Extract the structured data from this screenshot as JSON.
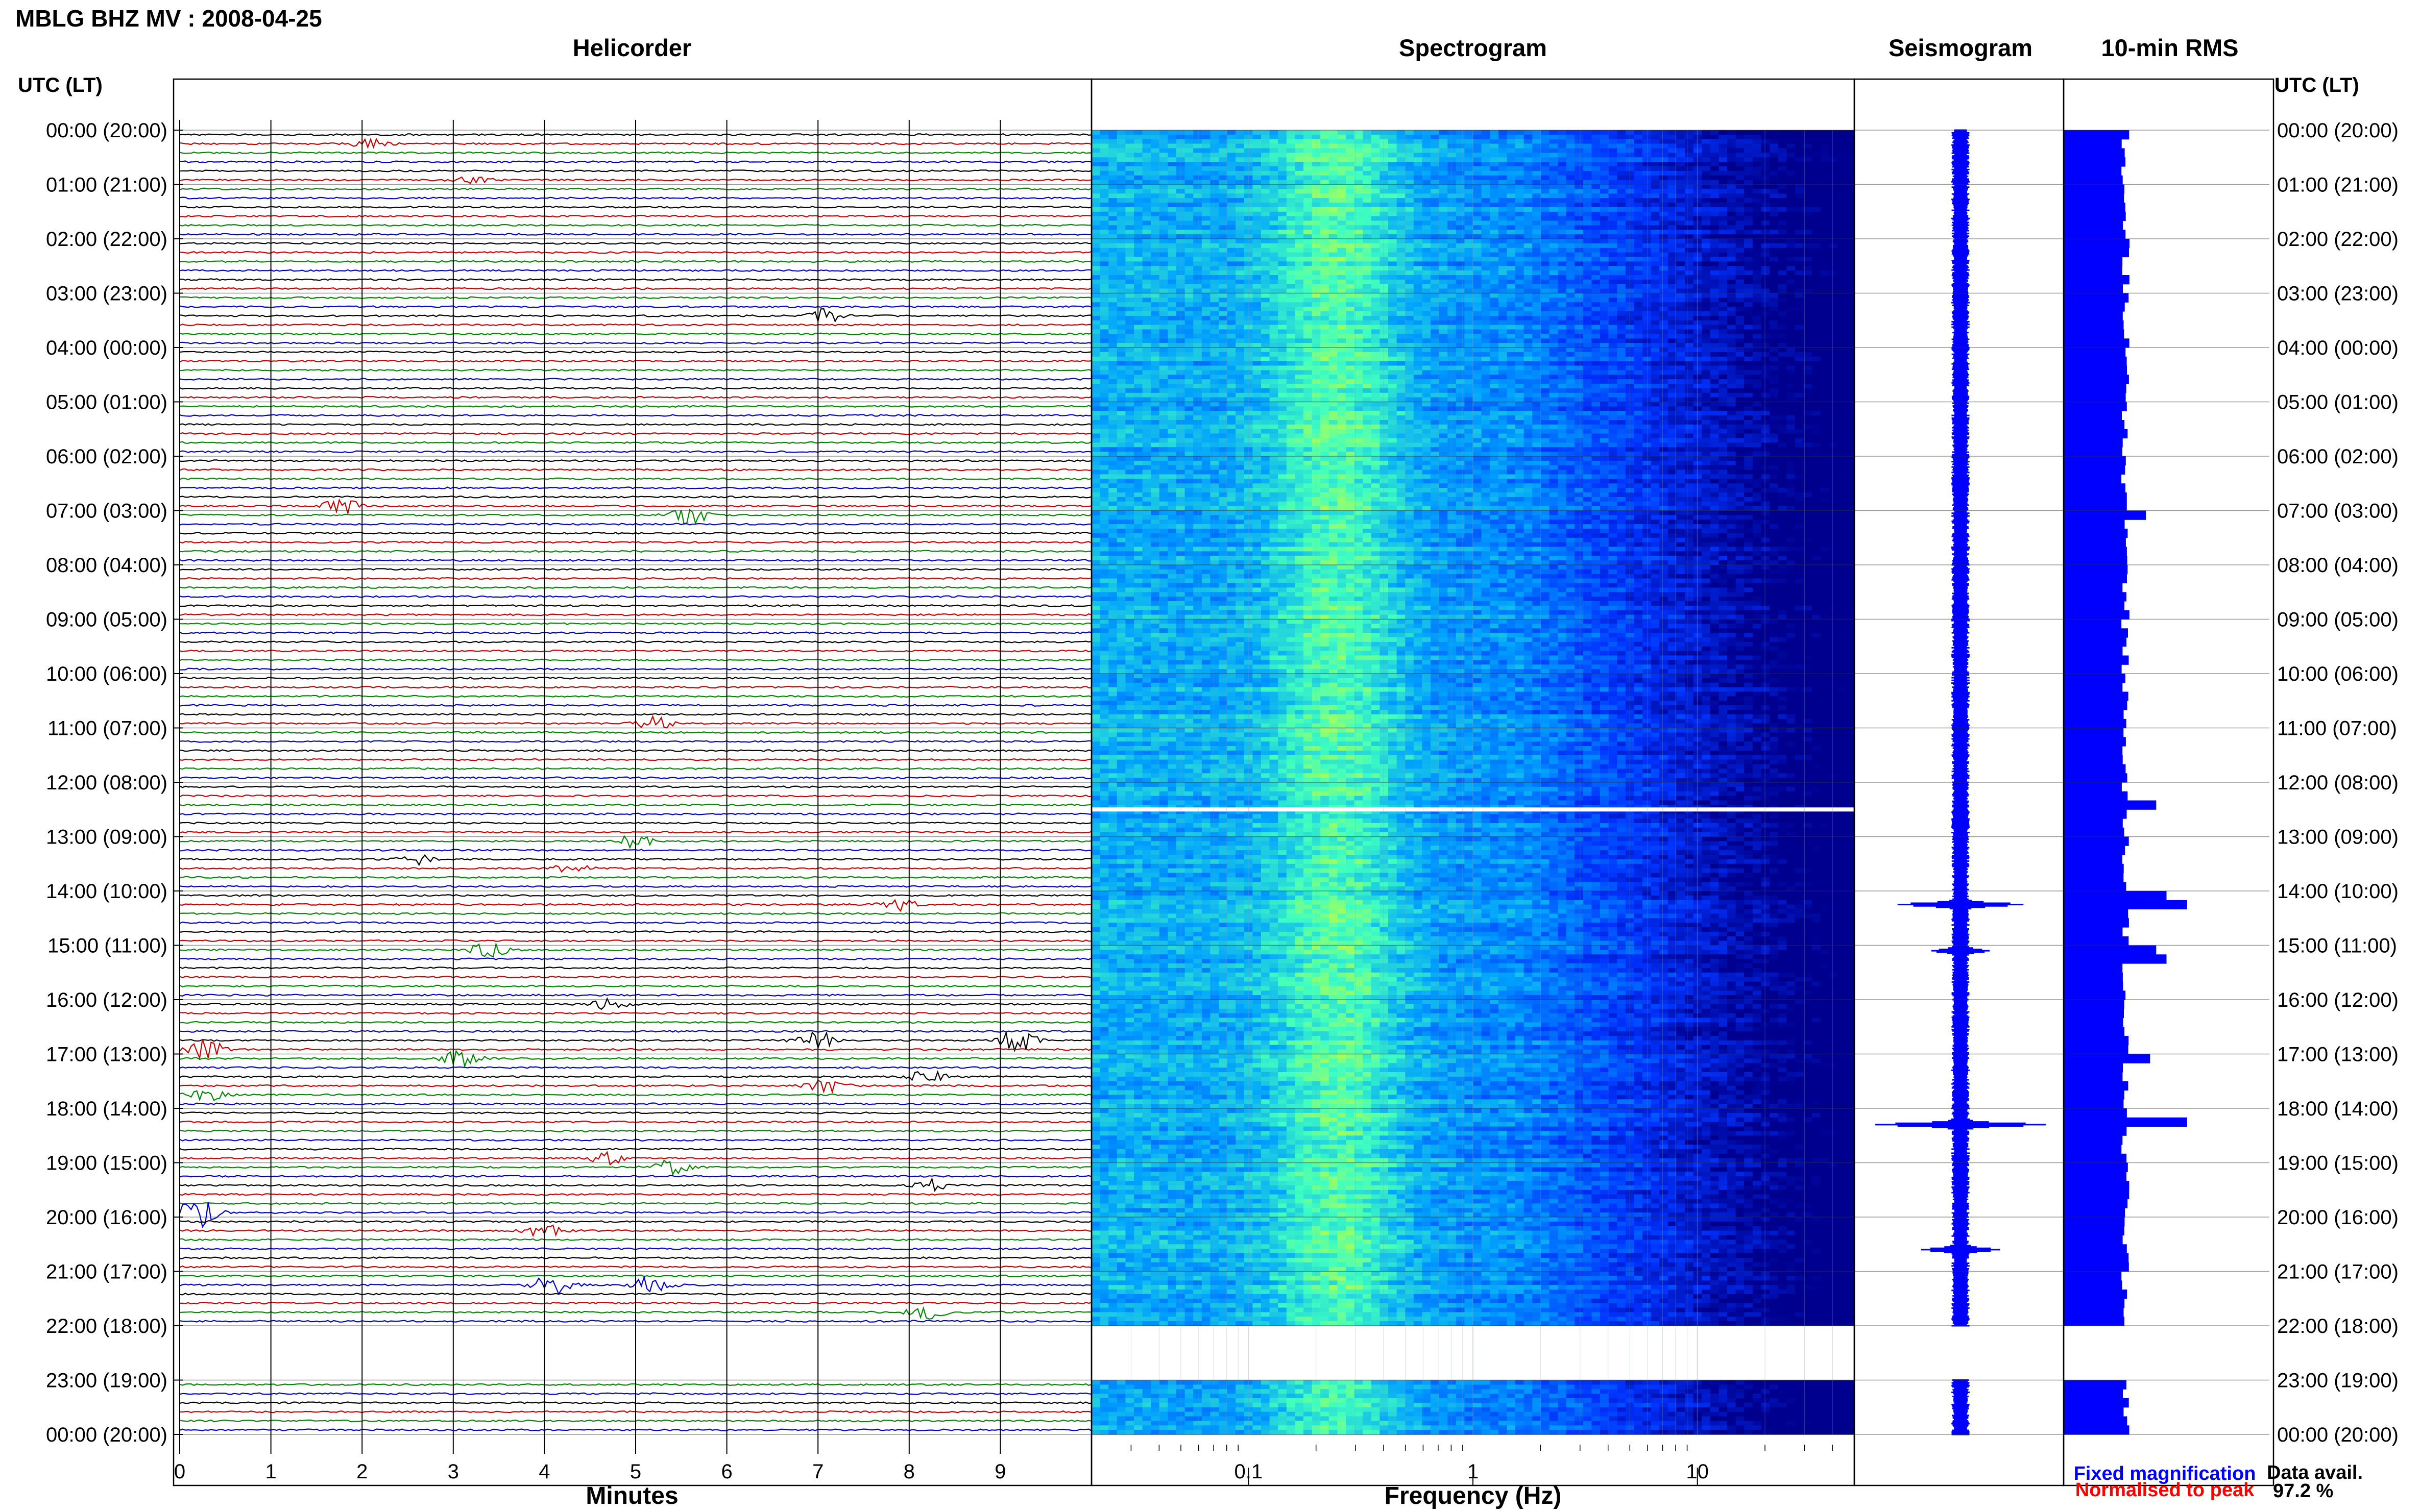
{
  "title": "MBLG BHZ MV : 2008-04-25",
  "panels": {
    "helicorder": "Helicorder",
    "spectrogram": "Spectrogram",
    "seismogram": "Seismogram",
    "rms": "10-min RMS"
  },
  "time_axis": {
    "label_left": "UTC (LT)",
    "label_right": "UTC (LT)",
    "ticks": [
      "00:00 (20:00)",
      "01:00 (21:00)",
      "02:00 (22:00)",
      "03:00 (23:00)",
      "04:00 (00:00)",
      "05:00 (01:00)",
      "06:00 (02:00)",
      "07:00 (03:00)",
      "08:00 (04:00)",
      "09:00 (05:00)",
      "10:00 (06:00)",
      "11:00 (07:00)",
      "12:00 (08:00)",
      "13:00 (09:00)",
      "14:00 (10:00)",
      "15:00 (11:00)",
      "16:00 (12:00)",
      "17:00 (13:00)",
      "18:00 (14:00)",
      "19:00 (15:00)",
      "20:00 (16:00)",
      "21:00 (17:00)",
      "22:00 (18:00)",
      "23:00 (19:00)",
      "00:00 (20:00)"
    ]
  },
  "legend": {
    "fixed": "Fixed magnification",
    "normalised": "Normalised to peak",
    "fixed_color": "#0000ff",
    "normalised_color": "#ff0000"
  },
  "data_avail": {
    "label": "Data avail.",
    "value": "97.2 %"
  },
  "chart_data": [
    {
      "type": "line",
      "name": "helicorder",
      "xlabel": "Minutes",
      "xticks": [
        "0",
        "1",
        "2",
        "3",
        "4",
        "5",
        "6",
        "7",
        "8",
        "9"
      ],
      "xlim": [
        0,
        10
      ],
      "lines_per_hour": 6,
      "trace_colors": [
        "#000000",
        "#cc0000",
        "#008800",
        "#0000cc"
      ],
      "gap_hours": [
        22
      ],
      "events": [
        {
          "line": 1,
          "minute": 2.1,
          "amp": 1.0
        },
        {
          "line": 5,
          "minute": 3.2,
          "amp": 0.8
        },
        {
          "line": 20,
          "minute": 7.1,
          "amp": 1.5
        },
        {
          "line": 41,
          "minute": 1.8,
          "amp": 2.0
        },
        {
          "line": 42,
          "minute": 5.6,
          "amp": 2.2
        },
        {
          "line": 65,
          "minute": 5.2,
          "amp": 1.6
        },
        {
          "line": 78,
          "minute": 5.0,
          "amp": 1.4
        },
        {
          "line": 80,
          "minute": 2.6,
          "amp": 1.2
        },
        {
          "line": 81,
          "minute": 4.3,
          "amp": 1.0
        },
        {
          "line": 85,
          "minute": 7.9,
          "amp": 1.3
        },
        {
          "line": 90,
          "minute": 3.4,
          "amp": 1.8
        },
        {
          "line": 96,
          "minute": 4.7,
          "amp": 1.2
        },
        {
          "line": 100,
          "minute": 7.0,
          "amp": 2.3
        },
        {
          "line": 100,
          "minute": 9.2,
          "amp": 2.6
        },
        {
          "line": 101,
          "minute": 0.3,
          "amp": 2.4
        },
        {
          "line": 102,
          "minute": 3.1,
          "amp": 2.0
        },
        {
          "line": 104,
          "minute": 8.2,
          "amp": 1.6
        },
        {
          "line": 105,
          "minute": 7.1,
          "amp": 1.5
        },
        {
          "line": 106,
          "minute": 0.3,
          "amp": 1.3
        },
        {
          "line": 113,
          "minute": 4.7,
          "amp": 1.4
        },
        {
          "line": 114,
          "minute": 5.4,
          "amp": 1.8
        },
        {
          "line": 116,
          "minute": 8.3,
          "amp": 1.3
        },
        {
          "line": 119,
          "minute": 0.2,
          "amp": 3.5
        },
        {
          "line": 121,
          "minute": 4.0,
          "amp": 1.4
        },
        {
          "line": 127,
          "minute": 4.1,
          "amp": 2.5
        },
        {
          "line": 127,
          "minute": 5.2,
          "amp": 2.2
        },
        {
          "line": 130,
          "minute": 8.2,
          "amp": 1.4
        }
      ]
    },
    {
      "type": "heatmap",
      "name": "spectrogram",
      "xlabel": "Frequency (Hz)",
      "xscale": "log",
      "xticks": [
        0.1,
        1,
        10
      ],
      "xtick_labels": [
        "0.1",
        "1",
        "10"
      ],
      "xlim": [
        0.02,
        50
      ],
      "colormap": [
        "#00008f",
        "#0033ff",
        "#00a0ff",
        "#40ffbf",
        "#dfff20"
      ],
      "gap_hours": [
        22
      ]
    },
    {
      "type": "line",
      "name": "seismogram",
      "color": "#0000ff",
      "peaks": [
        {
          "hour": 14.25,
          "amp": 0.55
        },
        {
          "hour": 18.3,
          "amp": 0.75
        },
        {
          "hour": 20.6,
          "amp": 0.3
        },
        {
          "hour": 15.1,
          "amp": 0.2
        }
      ]
    },
    {
      "type": "bar",
      "name": "rms",
      "orientation": "horizontal",
      "color": "#0000ff",
      "bin_minutes": 10,
      "baseline": 0.3,
      "peaks": [
        {
          "hour": 14.0,
          "value": 0.5
        },
        {
          "hour": 14.1,
          "value": 0.85
        },
        {
          "hour": 14.2,
          "value": 0.6
        },
        {
          "hour": 15.0,
          "value": 0.45
        },
        {
          "hour": 15.2,
          "value": 0.5
        },
        {
          "hour": 18.2,
          "value": 0.6
        },
        {
          "hour": 20.6,
          "value": 0.75
        },
        {
          "hour": 12.3,
          "value": 0.45
        },
        {
          "hour": 7.0,
          "value": 0.4
        },
        {
          "hour": 17.0,
          "value": 0.42
        }
      ]
    }
  ]
}
